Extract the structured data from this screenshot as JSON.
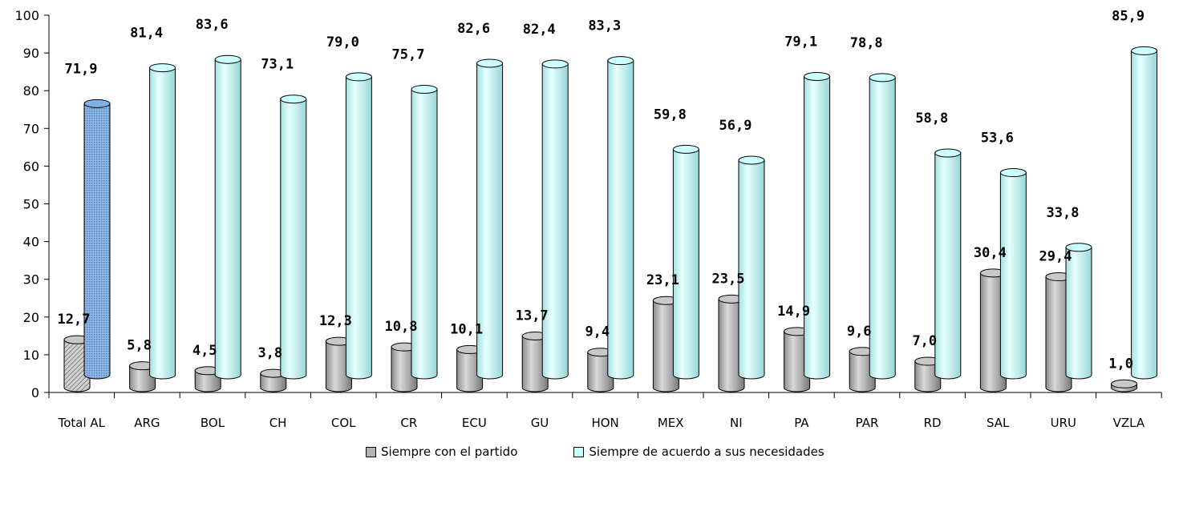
{
  "chart_data": {
    "type": "bar",
    "categories": [
      "Total AL",
      "ARG",
      "BOL",
      "CH",
      "COL",
      "CR",
      "ECU",
      "GU",
      "HON",
      "MEX",
      "NI",
      "PA",
      "PAR",
      "RD",
      "SAL",
      "URU",
      "VZLA"
    ],
    "series": [
      {
        "name": "Siempre con el partido",
        "values": [
          12.7,
          5.8,
          4.5,
          3.8,
          12.3,
          10.8,
          10.1,
          13.7,
          9.4,
          23.1,
          23.5,
          14.9,
          9.6,
          7.0,
          30.4,
          29.4,
          1.0
        ],
        "labels": [
          "12,7",
          "5,8",
          "4,5",
          "3,8",
          "12,3",
          "10,8",
          "10,1",
          "13,7",
          "9,4",
          "23,1",
          "23,5",
          "14,9",
          "9,6",
          "7,0",
          "30,4",
          "29,4",
          "1,0"
        ],
        "color": "#b3b3b3"
      },
      {
        "name": "Siempre de acuerdo a sus necesidades",
        "values": [
          71.9,
          81.4,
          83.6,
          73.1,
          79.0,
          75.7,
          82.6,
          82.4,
          83.3,
          59.8,
          56.9,
          79.1,
          78.8,
          58.8,
          53.6,
          33.8,
          85.9
        ],
        "labels": [
          "71,9",
          "81,4",
          "83,6",
          "73,1",
          "79,0",
          "75,7",
          "82,6",
          "82,4",
          "83,3",
          "59,8",
          "56,9",
          "79,1",
          "78,8",
          "58,8",
          "53,6",
          "33,8",
          "85,9"
        ],
        "color": "#ccffff",
        "highlight_color": "#7fb2e5"
      }
    ],
    "y_ticks": [
      "0",
      "10",
      "20",
      "30",
      "40",
      "50",
      "60",
      "70",
      "80",
      "90",
      "100"
    ],
    "ylim": [
      0,
      100
    ],
    "grid": false,
    "legend_position": "bottom"
  }
}
